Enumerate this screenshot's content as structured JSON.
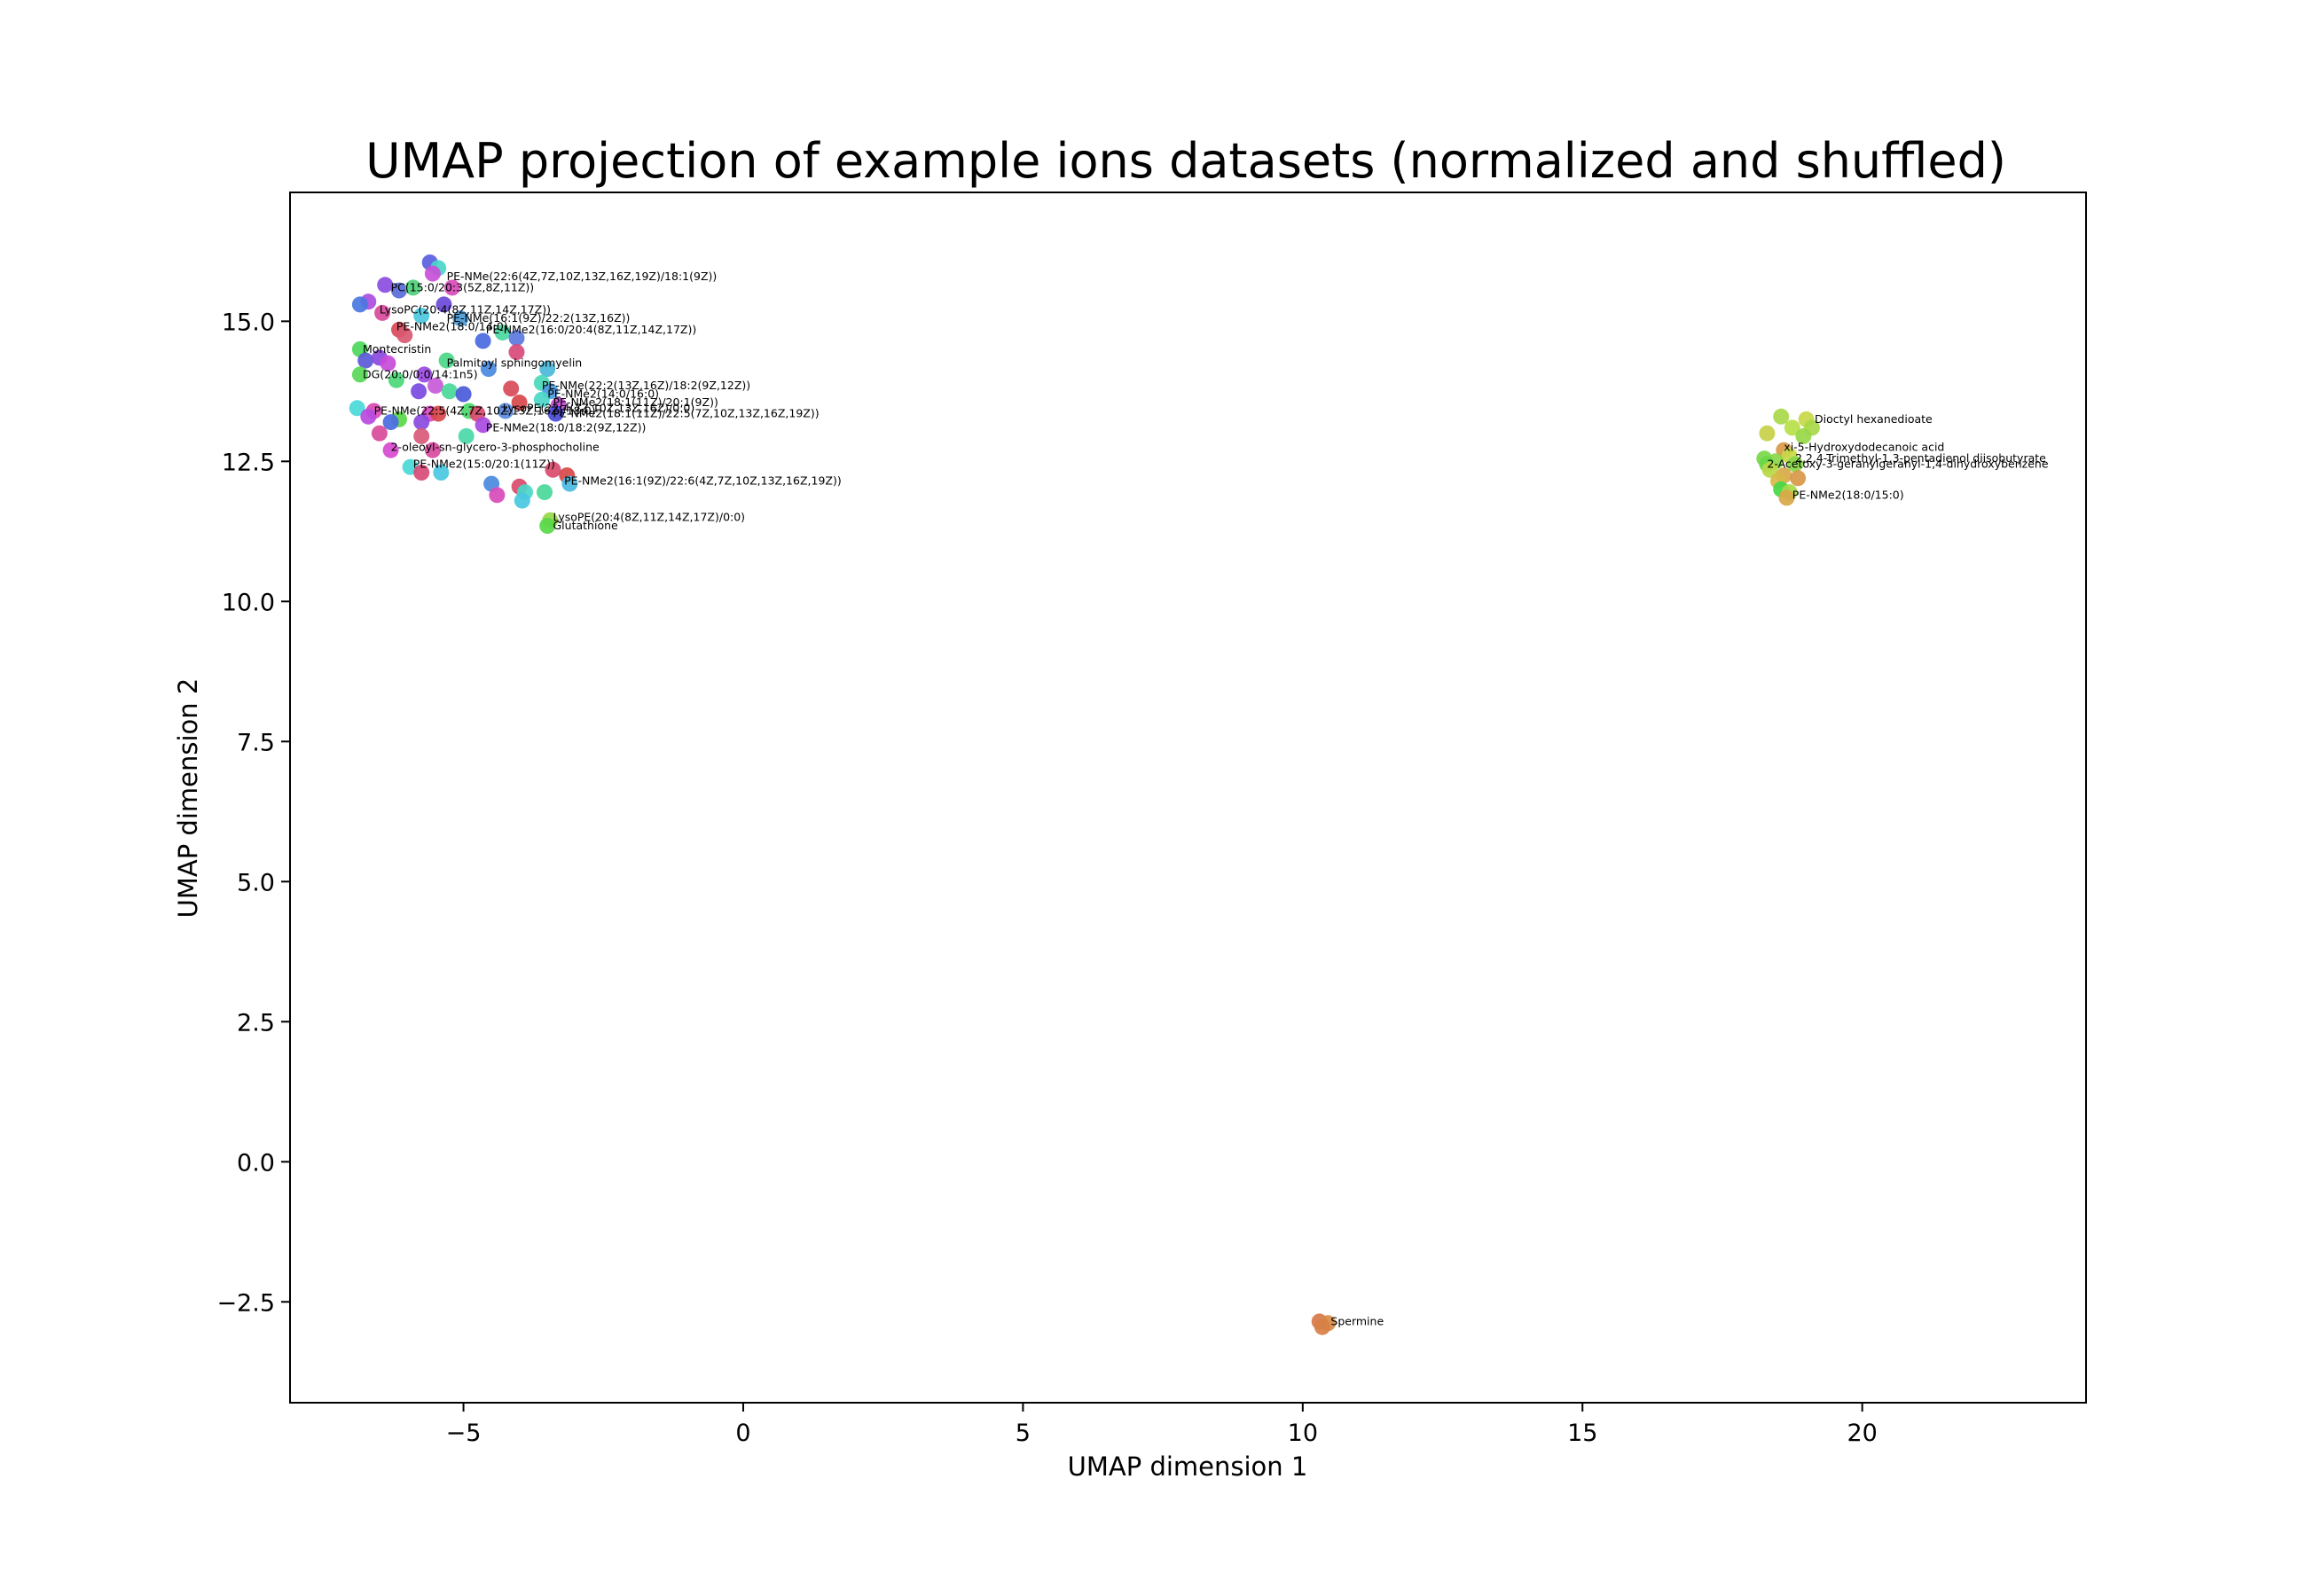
{
  "chart_data": {
    "type": "scatter",
    "title": "UMAP projection of example ions datasets (normalized and shuffled)",
    "xlabel": "UMAP dimension 1",
    "ylabel": "UMAP dimension 2",
    "xlim": [
      -8.1,
      24.0
    ],
    "ylim": [
      -4.3,
      17.3
    ],
    "xticks": [
      -5,
      0,
      5,
      10,
      15,
      20
    ],
    "xtick_labels": [
      "−5",
      "0",
      "5",
      "10",
      "15",
      "20"
    ],
    "yticks": [
      -2.5,
      0.0,
      2.5,
      5.0,
      7.5,
      10.0,
      12.5,
      15.0
    ],
    "ytick_labels": [
      "−2.5",
      "0.0",
      "2.5",
      "5.0",
      "7.5",
      "10.0",
      "12.5",
      "15.0"
    ],
    "grid": false,
    "legend": "none",
    "points": [
      {
        "x": -5.6,
        "y": 16.05,
        "color": "#5a5ee0"
      },
      {
        "x": -5.45,
        "y": 15.95,
        "color": "#4bd6c8"
      },
      {
        "x": -5.55,
        "y": 15.85,
        "color": "#c84fd8"
      },
      {
        "x": -6.4,
        "y": 15.65,
        "color": "#8a4de0"
      },
      {
        "x": -6.15,
        "y": 15.55,
        "color": "#5a6ad8"
      },
      {
        "x": -5.9,
        "y": 15.6,
        "color": "#4fd078"
      },
      {
        "x": -5.2,
        "y": 15.6,
        "color": "#d84ab8"
      },
      {
        "x": -6.7,
        "y": 15.35,
        "color": "#a84ee0"
      },
      {
        "x": -6.85,
        "y": 15.3,
        "color": "#4a78e0"
      },
      {
        "x": -5.35,
        "y": 15.3,
        "color": "#6a48d8"
      },
      {
        "x": -6.45,
        "y": 15.15,
        "color": "#d84a9a"
      },
      {
        "x": -5.75,
        "y": 15.1,
        "color": "#4cc8e0"
      },
      {
        "x": -5.05,
        "y": 15.05,
        "color": "#4a9ad8"
      },
      {
        "x": -6.15,
        "y": 14.85,
        "color": "#d84a5a"
      },
      {
        "x": -6.05,
        "y": 14.75,
        "color": "#d85870"
      },
      {
        "x": -4.3,
        "y": 14.8,
        "color": "#4ad8a0"
      },
      {
        "x": -4.05,
        "y": 14.7,
        "color": "#5a7ae0"
      },
      {
        "x": -4.65,
        "y": 14.65,
        "color": "#4a6ae0"
      },
      {
        "x": -6.85,
        "y": 14.5,
        "color": "#4cd85a"
      },
      {
        "x": -4.05,
        "y": 14.45,
        "color": "#d84a7a"
      },
      {
        "x": -6.75,
        "y": 14.3,
        "color": "#5a5ad8"
      },
      {
        "x": -6.5,
        "y": 14.35,
        "color": "#8a4ae0"
      },
      {
        "x": -6.35,
        "y": 14.25,
        "color": "#c84ad8"
      },
      {
        "x": -5.3,
        "y": 14.3,
        "color": "#4ad888"
      },
      {
        "x": -4.55,
        "y": 14.15,
        "color": "#4a8ae0"
      },
      {
        "x": -3.5,
        "y": 14.15,
        "color": "#4ab8d8"
      },
      {
        "x": -6.85,
        "y": 14.05,
        "color": "#58d858"
      },
      {
        "x": -5.7,
        "y": 14.05,
        "color": "#9a4ae0"
      },
      {
        "x": -6.2,
        "y": 13.95,
        "color": "#4ad878"
      },
      {
        "x": -3.6,
        "y": 13.9,
        "color": "#4ad8b8"
      },
      {
        "x": -5.5,
        "y": 13.85,
        "color": "#c85ad8"
      },
      {
        "x": -5.8,
        "y": 13.75,
        "color": "#7a4ae0"
      },
      {
        "x": -5.25,
        "y": 13.75,
        "color": "#4ad898"
      },
      {
        "x": -5.0,
        "y": 13.7,
        "color": "#4a5ad8"
      },
      {
        "x": -4.15,
        "y": 13.8,
        "color": "#d84a5a"
      },
      {
        "x": -3.45,
        "y": 13.75,
        "color": "#4a9ae0"
      },
      {
        "x": -3.6,
        "y": 13.6,
        "color": "#4ad8c8"
      },
      {
        "x": -4.0,
        "y": 13.55,
        "color": "#d8484a"
      },
      {
        "x": -3.3,
        "y": 13.5,
        "color": "#c84ad8"
      },
      {
        "x": -6.9,
        "y": 13.45,
        "color": "#4ad8d8"
      },
      {
        "x": -6.6,
        "y": 13.4,
        "color": "#d84ab0"
      },
      {
        "x": -5.6,
        "y": 13.35,
        "color": "#d84ac0"
      },
      {
        "x": -5.45,
        "y": 13.35,
        "color": "#d8484a"
      },
      {
        "x": -4.9,
        "y": 13.4,
        "color": "#4ad868"
      },
      {
        "x": -4.75,
        "y": 13.35,
        "color": "#d84a6a"
      },
      {
        "x": -4.25,
        "y": 13.4,
        "color": "#5a8ae0"
      },
      {
        "x": -3.35,
        "y": 13.35,
        "color": "#4a4ad8"
      },
      {
        "x": -6.7,
        "y": 13.3,
        "color": "#b84ae0"
      },
      {
        "x": -6.15,
        "y": 13.25,
        "color": "#5ad848"
      },
      {
        "x": -6.3,
        "y": 13.2,
        "color": "#4a6ae0"
      },
      {
        "x": -5.75,
        "y": 13.2,
        "color": "#8a4ae0"
      },
      {
        "x": -4.65,
        "y": 13.15,
        "color": "#a84ae0"
      },
      {
        "x": -6.5,
        "y": 13.0,
        "color": "#d84a9a"
      },
      {
        "x": -5.75,
        "y": 12.95,
        "color": "#d85a7a"
      },
      {
        "x": -4.95,
        "y": 12.95,
        "color": "#4ad8a8"
      },
      {
        "x": -6.3,
        "y": 12.7,
        "color": "#d84ad0"
      },
      {
        "x": -5.55,
        "y": 12.7,
        "color": "#d84aa0"
      },
      {
        "x": -5.95,
        "y": 12.4,
        "color": "#4ad8d8"
      },
      {
        "x": -5.4,
        "y": 12.3,
        "color": "#4ac8e0"
      },
      {
        "x": -5.75,
        "y": 12.3,
        "color": "#d84a78"
      },
      {
        "x": -3.4,
        "y": 12.35,
        "color": "#d84a6a"
      },
      {
        "x": -3.15,
        "y": 12.25,
        "color": "#d84848"
      },
      {
        "x": -3.1,
        "y": 12.1,
        "color": "#4ab8e0"
      },
      {
        "x": -4.5,
        "y": 12.1,
        "color": "#4a8ae0"
      },
      {
        "x": -4.0,
        "y": 12.05,
        "color": "#d84a6a"
      },
      {
        "x": -4.4,
        "y": 11.9,
        "color": "#d84ab8"
      },
      {
        "x": -3.9,
        "y": 11.95,
        "color": "#4ad8c8"
      },
      {
        "x": -3.55,
        "y": 11.95,
        "color": "#4ad898"
      },
      {
        "x": -3.95,
        "y": 11.8,
        "color": "#4ac8e0"
      },
      {
        "x": -3.45,
        "y": 11.45,
        "color": "#98d848"
      },
      {
        "x": -3.5,
        "y": 11.35,
        "color": "#58d848"
      },
      {
        "x": 18.55,
        "y": 13.3,
        "color": "#a8d848"
      },
      {
        "x": 19.0,
        "y": 13.25,
        "color": "#c8d848"
      },
      {
        "x": 18.75,
        "y": 13.1,
        "color": "#b8e048"
      },
      {
        "x": 19.1,
        "y": 13.1,
        "color": "#a8d848"
      },
      {
        "x": 18.95,
        "y": 12.95,
        "color": "#98d848"
      },
      {
        "x": 18.3,
        "y": 13.0,
        "color": "#c8d048"
      },
      {
        "x": 18.6,
        "y": 12.7,
        "color": "#d89a48"
      },
      {
        "x": 18.7,
        "y": 12.6,
        "color": "#c8d848"
      },
      {
        "x": 18.25,
        "y": 12.55,
        "color": "#78d848"
      },
      {
        "x": 18.45,
        "y": 12.5,
        "color": "#8ad848"
      },
      {
        "x": 18.3,
        "y": 12.45,
        "color": "#68d848"
      },
      {
        "x": 18.8,
        "y": 12.45,
        "color": "#88d848"
      },
      {
        "x": 18.35,
        "y": 12.35,
        "color": "#b8d848"
      },
      {
        "x": 18.6,
        "y": 12.25,
        "color": "#d8a848"
      },
      {
        "x": 18.85,
        "y": 12.2,
        "color": "#d89848"
      },
      {
        "x": 18.5,
        "y": 12.15,
        "color": "#d8b848"
      },
      {
        "x": 18.55,
        "y": 12.0,
        "color": "#48d848"
      },
      {
        "x": 18.7,
        "y": 11.95,
        "color": "#a8d848"
      },
      {
        "x": 18.65,
        "y": 11.85,
        "color": "#d8a848"
      },
      {
        "x": 10.3,
        "y": -2.85,
        "color": "#d87848"
      },
      {
        "x": 10.45,
        "y": -2.88,
        "color": "#d88a48"
      },
      {
        "x": 10.35,
        "y": -2.95,
        "color": "#d88048"
      }
    ],
    "annotations": [
      {
        "x": -5.3,
        "y": 15.8,
        "text": "PE-NMe(22:6(4Z,7Z,10Z,13Z,16Z,19Z)/18:1(9Z))"
      },
      {
        "x": -6.3,
        "y": 15.6,
        "text": "PC(15:0/20:3(5Z,8Z,11Z))"
      },
      {
        "x": -6.5,
        "y": 15.2,
        "text": "LysoPC(20:4(8Z,11Z,14Z,17Z))"
      },
      {
        "x": -5.3,
        "y": 15.05,
        "text": "PE-NMe(16:1(9Z)/22:2(13Z,16Z))"
      },
      {
        "x": -6.2,
        "y": 14.9,
        "text": "PE-NMe2(18:0/14:0)"
      },
      {
        "x": -4.6,
        "y": 14.85,
        "text": "PE-NMe2(16:0/20:4(8Z,11Z,14Z,17Z))"
      },
      {
        "x": -6.8,
        "y": 14.5,
        "text": "Montecristin"
      },
      {
        "x": -5.3,
        "y": 14.25,
        "text": "Palmitoyl sphingomyelin"
      },
      {
        "x": -6.8,
        "y": 14.05,
        "text": "DG(20:0/0:0/14:1n5)"
      },
      {
        "x": -3.6,
        "y": 13.85,
        "text": "PE-NMe(22:2(13Z,16Z)/18:2(9Z,12Z))"
      },
      {
        "x": -3.5,
        "y": 13.7,
        "text": "PE-NMe2(14:0/16:0)"
      },
      {
        "x": -3.4,
        "y": 13.55,
        "text": "PE-NMe2(18:1(11Z)/20:1(9Z))"
      },
      {
        "x": -4.3,
        "y": 13.45,
        "text": "LysoPE(22:4(7Z,10Z,13Z,16Z)/0:0)"
      },
      {
        "x": -6.6,
        "y": 13.4,
        "text": "PE-NMe(22:5(4Z,7Z,10Z,13Z,16Z)/18:0)"
      },
      {
        "x": -3.4,
        "y": 13.35,
        "text": "PE-NMe2(18:1(11Z)/22:5(7Z,10Z,13Z,16Z,19Z))"
      },
      {
        "x": -4.6,
        "y": 13.1,
        "text": "PE-NMe2(18:0/18:2(9Z,12Z))"
      },
      {
        "x": -6.3,
        "y": 12.75,
        "text": "2-oleoyl-sn-glycero-3-phosphocholine"
      },
      {
        "x": -5.9,
        "y": 12.45,
        "text": "PE-NMe2(15:0/20:1(11Z))"
      },
      {
        "x": -3.2,
        "y": 12.15,
        "text": "PE-NMe2(16:1(9Z)/22:6(4Z,7Z,10Z,13Z,16Z,19Z))"
      },
      {
        "x": -3.4,
        "y": 11.5,
        "text": "LysoPE(20:4(8Z,11Z,14Z,17Z)/0:0)"
      },
      {
        "x": -3.4,
        "y": 11.35,
        "text": "Glutathione"
      },
      {
        "x": 19.15,
        "y": 13.25,
        "text": "Dioctyl hexanedioate"
      },
      {
        "x": 18.6,
        "y": 12.75,
        "text": "xi-5-Hydroxydodecanoic acid"
      },
      {
        "x": 18.8,
        "y": 12.55,
        "text": "2,2,4-Trimethyl-1,3-pentadienol diisobutyrate"
      },
      {
        "x": 18.3,
        "y": 12.45,
        "text": "2-Acetoxy-3-geranylgeranyl-1,4-dihydroxybenzene"
      },
      {
        "x": 18.75,
        "y": 11.9,
        "text": "PE-NMe2(18:0/15:0)"
      },
      {
        "x": 10.5,
        "y": -2.85,
        "text": "Spermine"
      }
    ]
  }
}
